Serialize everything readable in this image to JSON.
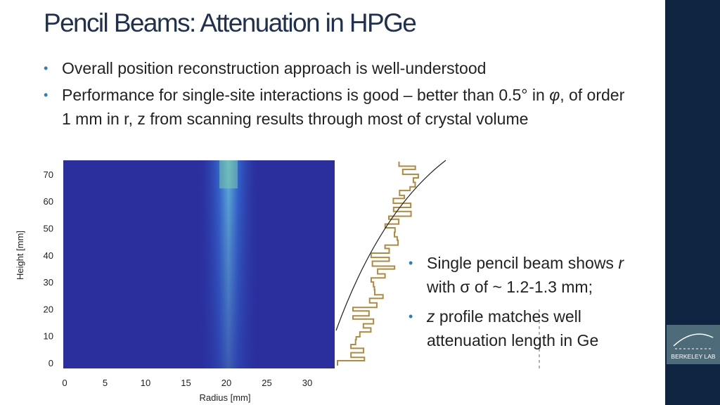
{
  "title": "Pencil Beams: Attenuation in HPGe",
  "bullets": [
    {
      "runs": [
        {
          "text": "Overall position reconstruction approach is well-understood",
          "italic": false
        }
      ]
    },
    {
      "runs": [
        {
          "text": "Performance for single-site interactions is good – better than 0.5° in ",
          "italic": false
        },
        {
          "text": "φ",
          "italic": true
        },
        {
          "text": ", of order 1 mm in r, z from scanning results through most of crystal volume",
          "italic": false
        }
      ]
    }
  ],
  "figure": {
    "y_label": "Height [mm]",
    "x_label": "Radius [mm]",
    "x_ticks": [
      0,
      5,
      10,
      15,
      20,
      25,
      30
    ],
    "y_ticks": [
      0,
      10,
      20,
      30,
      40,
      50,
      60,
      70
    ]
  },
  "side_bullets": [
    {
      "runs": [
        {
          "text": "Single pencil beam shows ",
          "italic": false
        },
        {
          "text": "r",
          "italic": true
        },
        {
          "text": " with σ of ~ 1.2-1.3 mm;",
          "italic": false
        }
      ]
    },
    {
      "runs": [
        {
          "text": "z",
          "italic": true
        },
        {
          "text": " profile matches well attenuation length in Ge",
          "italic": false
        }
      ]
    }
  ],
  "logo": {
    "text": "BERKELEY LAB"
  }
}
